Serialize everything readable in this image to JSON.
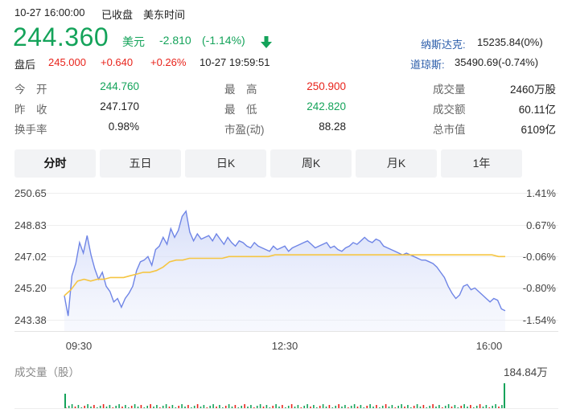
{
  "header": {
    "datetime": "10-27 16:00:00",
    "status": "已收盘",
    "timezone": "美东时间",
    "price": "244.360",
    "currency": "美元",
    "change": "-2.810",
    "change_pct": "(-1.14%)",
    "after_label": "盘后",
    "after_price": "245.000",
    "after_change": "+0.640",
    "after_pct": "+0.26%",
    "after_time": "10-27 19:59:51",
    "nasdaq_label": "纳斯达克:",
    "nasdaq_value": "15235.84(0%)",
    "dow_label": "道琼斯:",
    "dow_value": "35490.69(-0.74%)"
  },
  "stats": [
    {
      "label": "今　开",
      "value": "244.760"
    },
    {
      "label": "最　高",
      "value": "250.900"
    },
    {
      "label": "成交量",
      "value": "2460万股"
    },
    {
      "label": "昨　收",
      "value": "247.170"
    },
    {
      "label": "最　低",
      "value": "242.820"
    },
    {
      "label": "成交额",
      "value": "60.11亿"
    },
    {
      "label": "换手率",
      "value": "0.98%"
    },
    {
      "label": "市盈(动)",
      "value": "88.28"
    },
    {
      "label": "总市值",
      "value": "6109亿"
    }
  ],
  "tabs": [
    {
      "label": "分时",
      "active": true
    },
    {
      "label": "五日",
      "active": false
    },
    {
      "label": "日K",
      "active": false
    },
    {
      "label": "周K",
      "active": false
    },
    {
      "label": "月K",
      "active": false
    },
    {
      "label": "1年",
      "active": false
    }
  ],
  "chart_data": {
    "type": "line",
    "y_ticks_left": [
      "250.65",
      "248.83",
      "247.02",
      "245.20",
      "243.38"
    ],
    "y_ticks_right": [
      "1.41%",
      "0.67%",
      "-0.06%",
      "-0.80%",
      "-1.54%"
    ],
    "x_ticks": [
      "09:30",
      "12:30",
      "16:00"
    ],
    "ylim": [
      243.38,
      250.65
    ],
    "prev_close": 247.17,
    "series": [
      {
        "values": [
          244.76,
          243.6,
          245.9,
          246.6,
          247.8,
          247.2,
          248.2,
          247.1,
          246.3,
          245.7,
          246.1,
          245.3,
          245.0,
          244.4,
          244.6,
          244.1,
          244.6,
          244.9,
          245.3,
          246.2,
          246.7,
          246.8,
          247.0,
          246.5,
          247.4,
          247.6,
          248.1,
          247.7,
          248.6,
          248.1,
          248.5,
          249.3,
          249.6,
          248.4,
          247.9,
          248.3,
          248.0,
          248.1,
          248.2,
          247.9,
          248.3,
          248.0,
          247.7,
          248.1,
          247.8,
          247.6,
          247.9,
          247.8,
          247.6,
          247.5,
          247.8,
          247.6,
          247.5,
          247.4,
          247.3,
          247.6,
          247.4,
          247.5,
          247.6,
          247.3,
          247.5,
          247.6,
          247.7,
          247.8,
          247.9,
          247.7,
          247.5,
          247.6,
          247.7,
          247.8,
          247.5,
          247.6,
          247.4,
          247.3,
          247.5,
          247.6,
          247.8,
          247.7,
          247.9,
          248.1,
          247.9,
          247.8,
          248.0,
          247.9,
          247.6,
          247.5,
          247.4,
          247.3,
          247.2,
          247.1,
          247.2,
          247.1,
          247.0,
          246.9,
          246.8,
          246.8,
          246.7,
          246.6,
          246.4,
          246.1,
          245.8,
          245.3,
          244.9,
          244.6,
          244.8,
          245.3,
          245.4,
          245.1,
          245.2,
          245.0,
          244.8,
          244.6,
          244.4,
          244.6,
          244.5,
          244.0,
          243.9
        ],
        "color": "#6f85e6"
      },
      {
        "values": [
          244.76,
          245.1,
          245.6,
          245.7,
          245.6,
          245.7,
          245.7,
          245.8,
          245.8,
          245.8,
          245.9,
          246.0,
          246.1,
          246.1,
          246.2,
          246.4,
          246.7,
          246.8,
          246.8,
          246.9,
          246.9,
          246.9,
          246.9,
          246.9,
          246.9,
          247.0,
          247.0,
          247.0,
          247.0,
          247.0,
          247.0,
          247.0,
          247.1,
          247.1,
          247.1,
          247.1,
          247.1,
          247.1,
          247.1,
          247.1,
          247.1,
          247.1,
          247.1,
          247.1,
          247.1,
          247.1,
          247.1,
          247.1,
          247.1,
          247.1,
          247.1,
          247.1,
          247.1,
          247.1,
          247.1,
          247.1,
          247.1,
          247.1,
          247.1,
          247.1,
          247.1,
          247.1,
          247.1,
          247.1,
          247.1,
          247.1,
          247.0,
          247.0
        ],
        "color": "#f5c542"
      }
    ],
    "volume_label": "成交量（股）",
    "volume_max_label": "184.84万"
  }
}
